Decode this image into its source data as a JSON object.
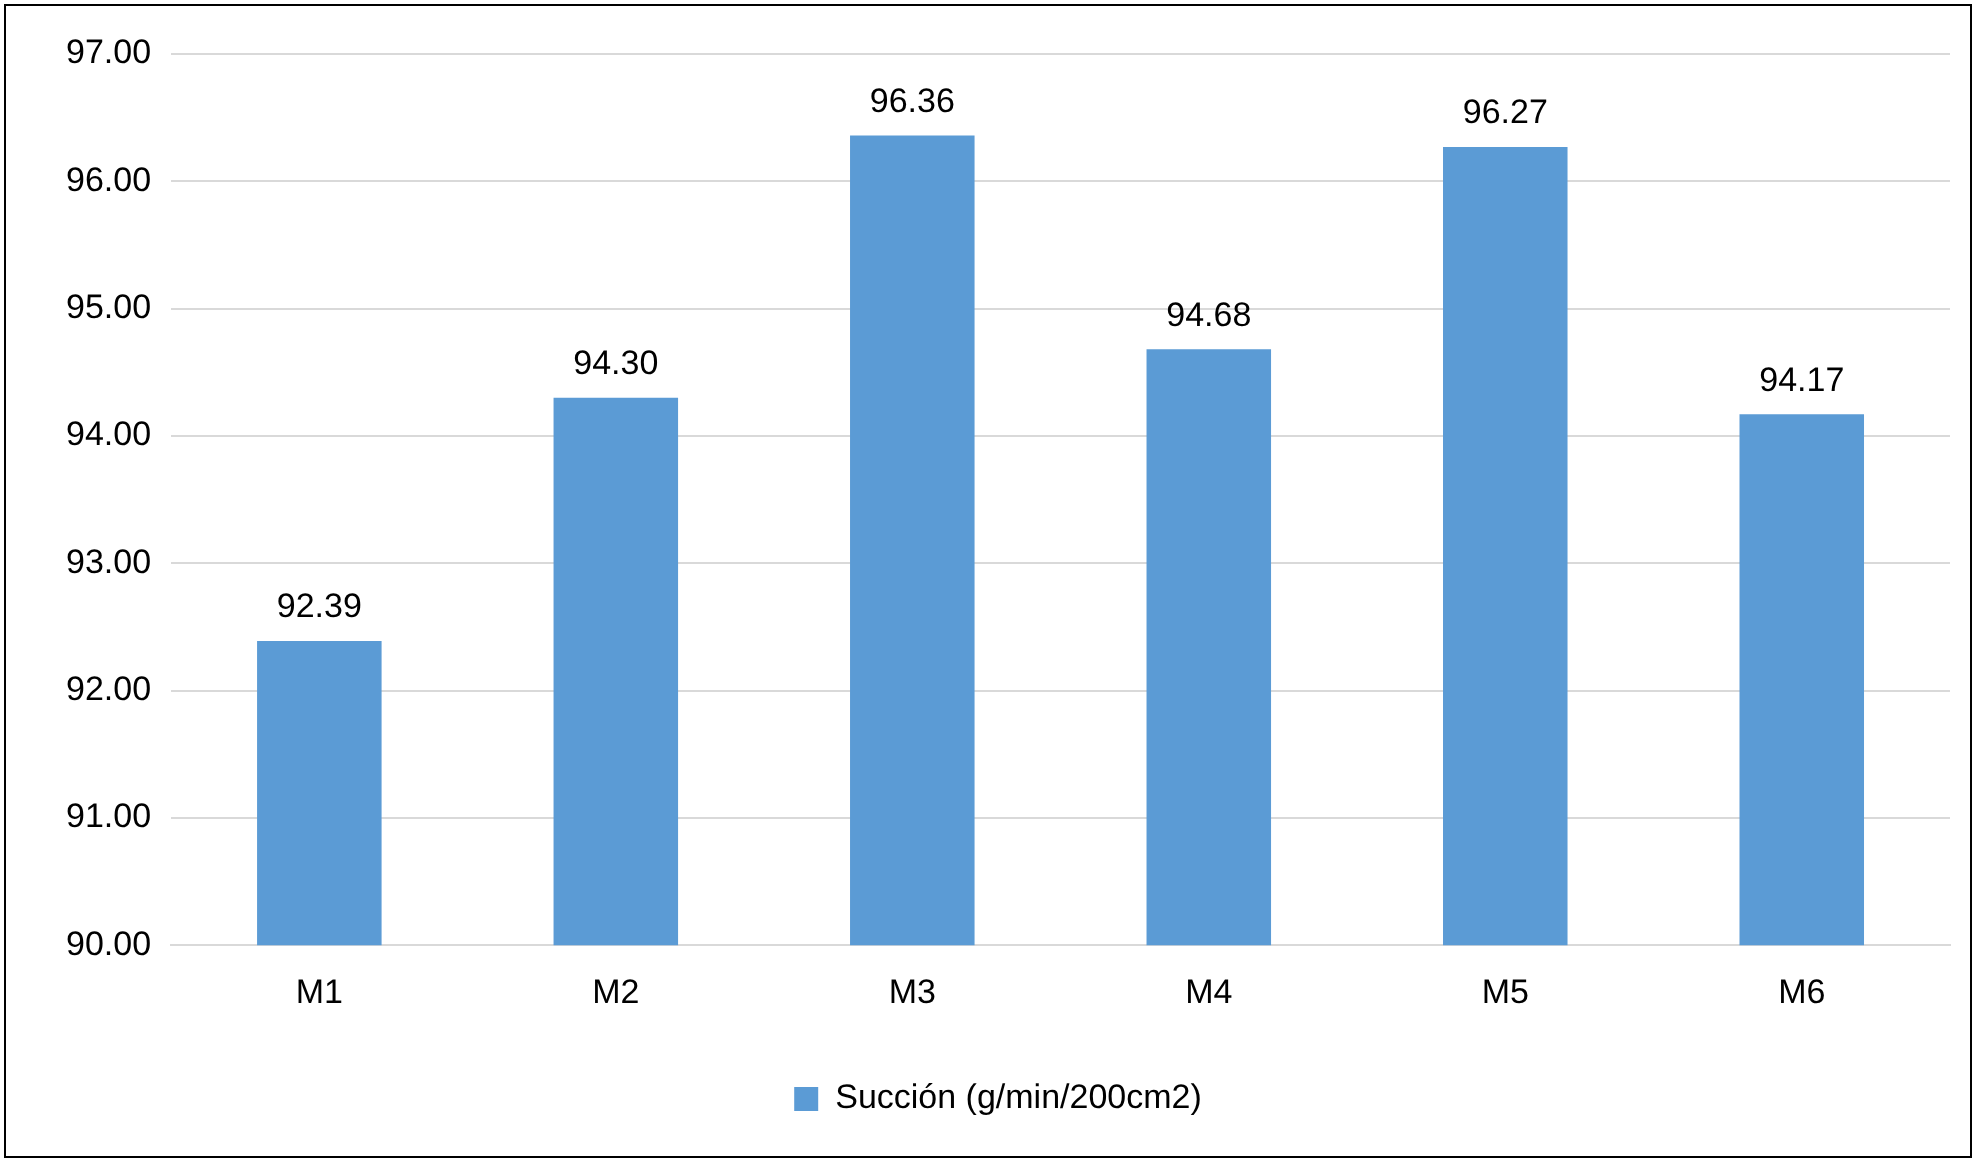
{
  "chart_data": {
    "type": "bar",
    "categories": [
      "M1",
      "M2",
      "M3",
      "M4",
      "M5",
      "M6"
    ],
    "series": [
      {
        "name": "Succión (g/min/200cm2)",
        "color": "#5b9bd5",
        "values": [
          92.39,
          94.3,
          96.36,
          94.68,
          96.27,
          94.17
        ],
        "value_labels": [
          "92.39",
          "94.30",
          "96.36",
          "94.68",
          "96.27",
          "94.17"
        ]
      }
    ],
    "ylim": [
      90,
      97
    ],
    "yticks": [
      {
        "value": 90,
        "label": "90.00"
      },
      {
        "value": 91,
        "label": "91.00"
      },
      {
        "value": 92,
        "label": "92.00"
      },
      {
        "value": 93,
        "label": "93.00"
      },
      {
        "value": 94,
        "label": "94.00"
      },
      {
        "value": 95,
        "label": "95.00"
      },
      {
        "value": 96,
        "label": "96.00"
      },
      {
        "value": 97,
        "label": "97.00"
      }
    ],
    "grid": "y",
    "legend": "bottom"
  }
}
